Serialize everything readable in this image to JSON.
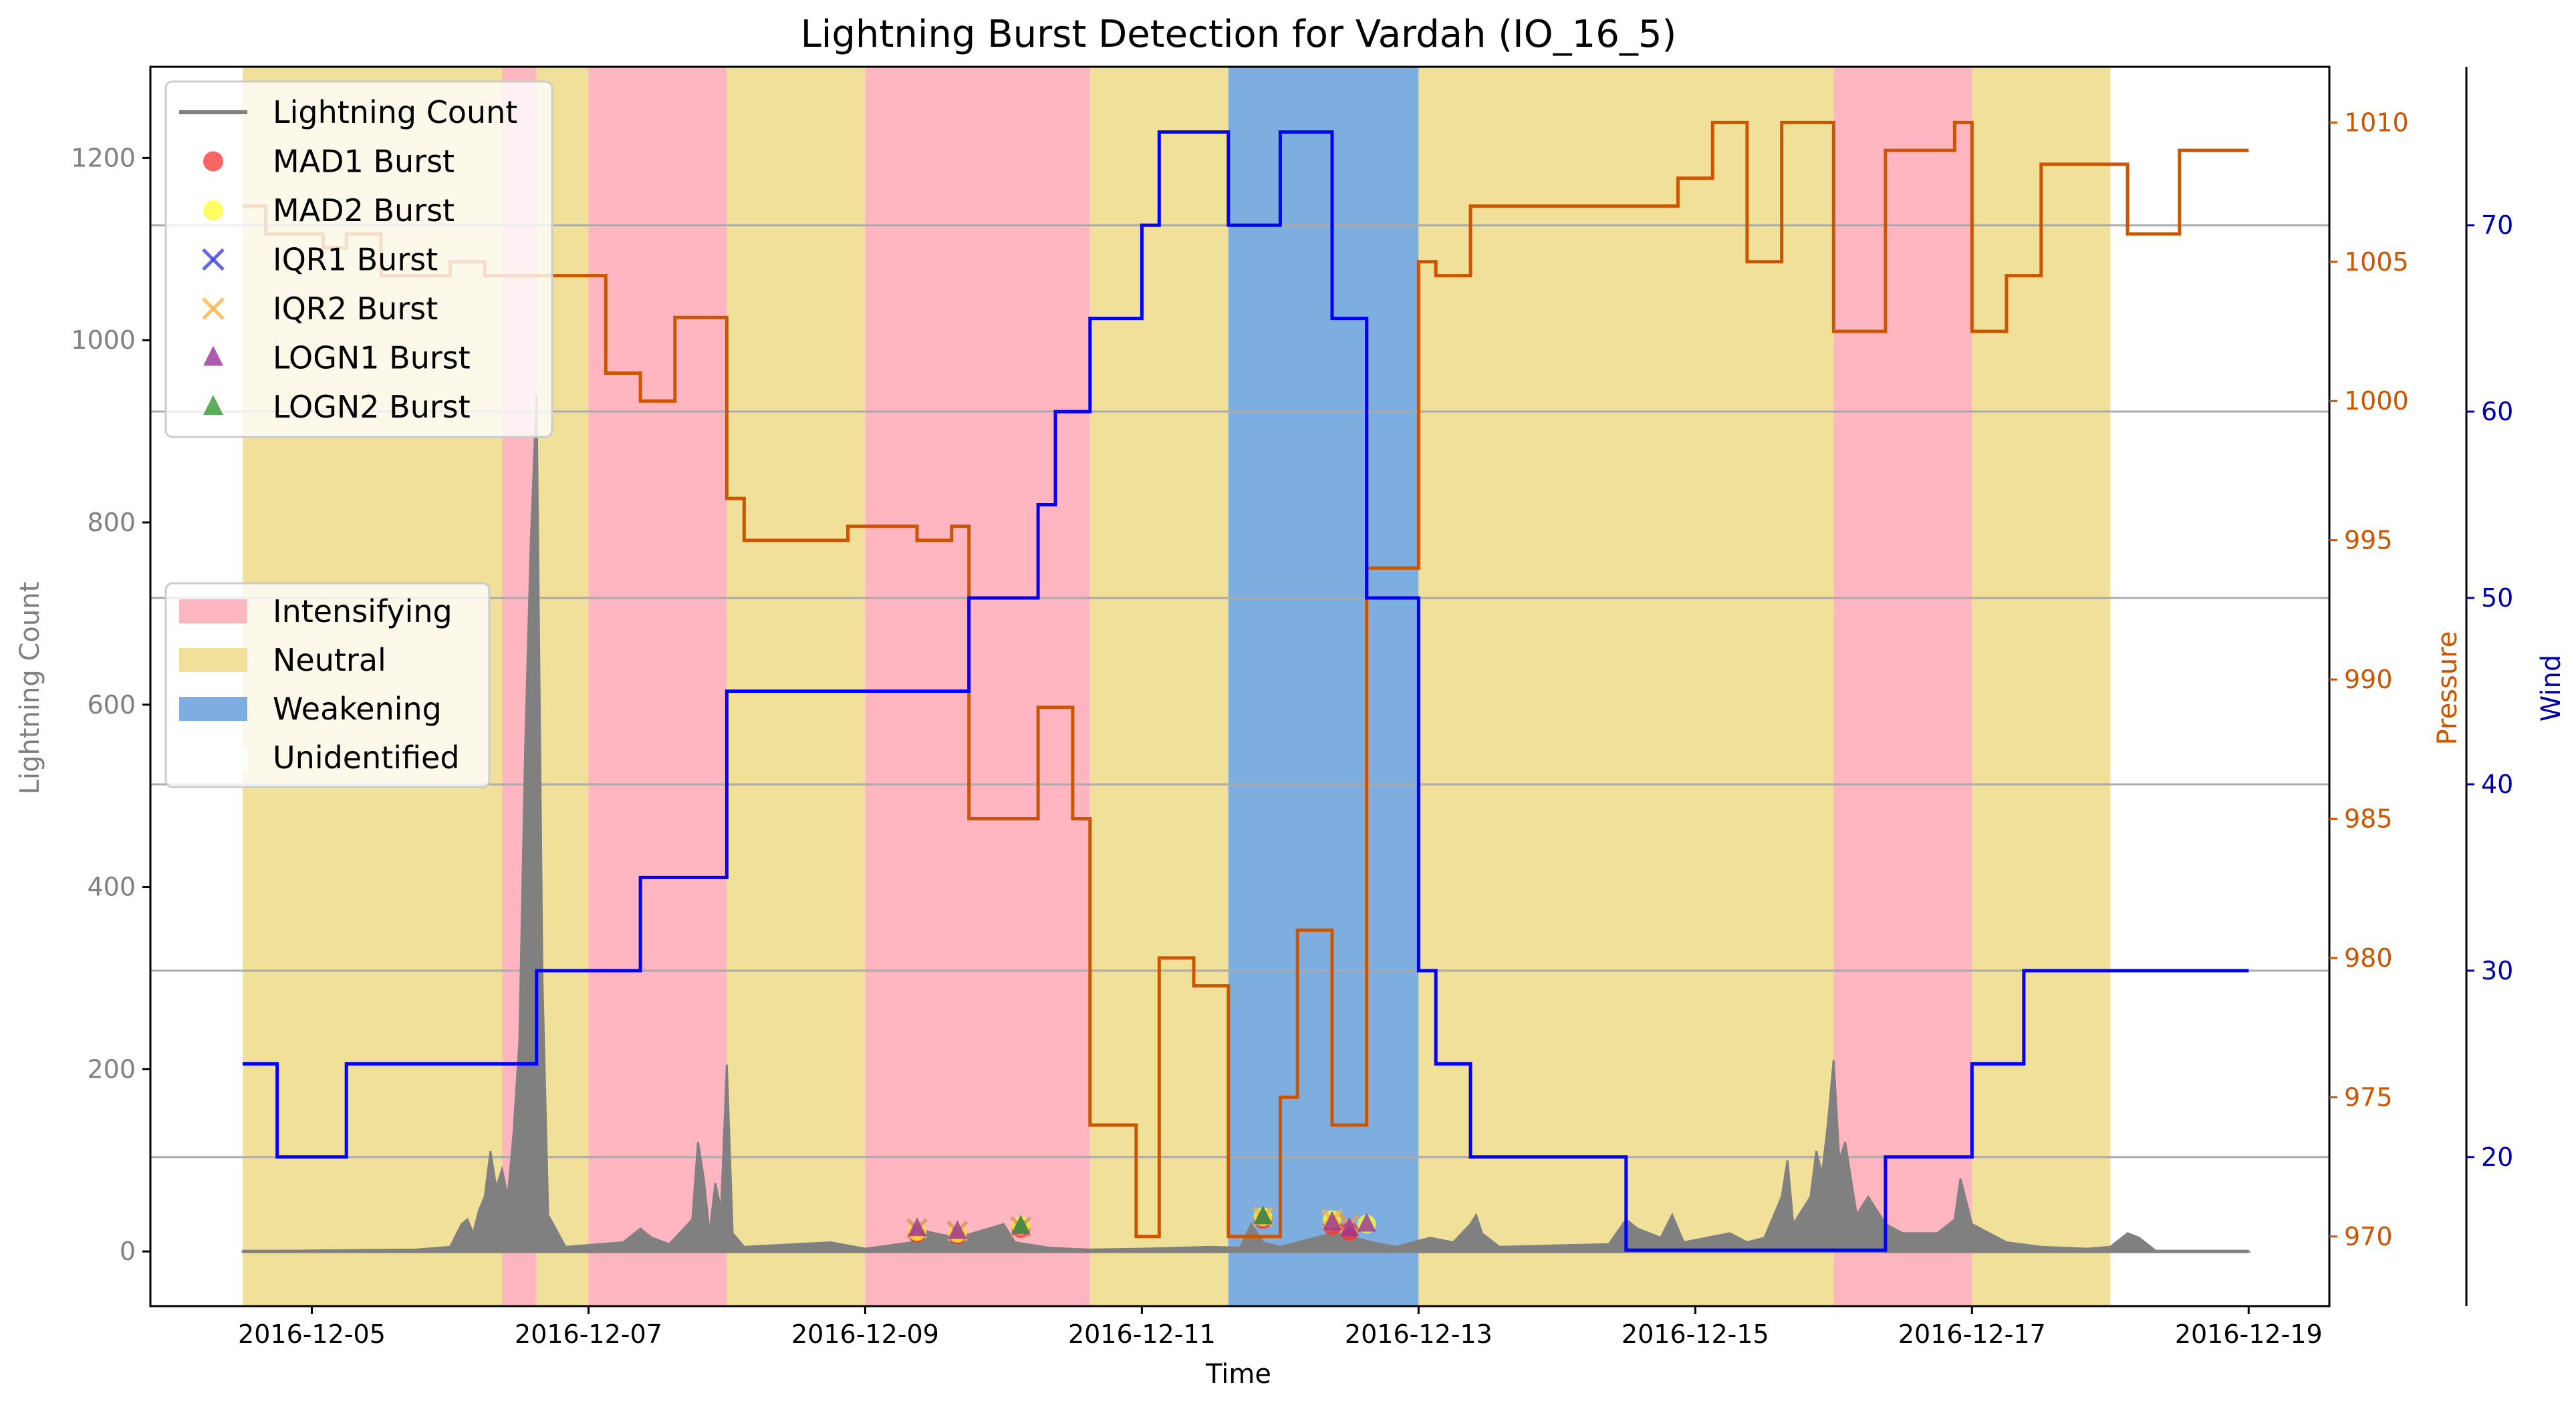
{
  "chart_data": {
    "type": "line",
    "title": "Lightning Burst Detection for Vardah (IO_16_5)",
    "xlabel": "Time",
    "x_ticks": [
      "2016-12-05",
      "2016-12-07",
      "2016-12-09",
      "2016-12-11",
      "2016-12-13",
      "2016-12-15",
      "2016-12-17",
      "2016-12-19"
    ],
    "xlim": [
      "2016-12-03T20:00",
      "2016-12-19T14:00"
    ],
    "axes": {
      "left": {
        "label": "Lightning Count",
        "ylim": [
          -60,
          1300
        ],
        "ticks": [
          0,
          200,
          400,
          600,
          800,
          1000,
          1200
        ],
        "color": "#808080"
      },
      "pressure": {
        "label": "Pressure",
        "ylim": [
          967.5,
          1012
        ],
        "ticks": [
          970,
          975,
          980,
          985,
          990,
          995,
          1000,
          1005,
          1010
        ],
        "color": "#cc5500"
      },
      "wind": {
        "label": "Wind",
        "ylim": [
          12,
          78.5
        ],
        "ticks": [
          20,
          30,
          40,
          50,
          60,
          70
        ],
        "color": "#0000aa"
      }
    },
    "grid": "horizontal lines at wind ticks",
    "colors": {
      "intensifying": "#ffb6c1",
      "neutral": "#f0e09a",
      "weakening": "#7eaee0",
      "lightning": "#808080",
      "pressure": "#cc5500",
      "wind": "#0000ff"
    },
    "phases": [
      {
        "start": "2016-12-04T12:00",
        "end": "2016-12-06T09:00",
        "phase": "Neutral"
      },
      {
        "start": "2016-12-06T09:00",
        "end": "2016-12-06T15:00",
        "phase": "Intensifying"
      },
      {
        "start": "2016-12-06T15:00",
        "end": "2016-12-07T00:00",
        "phase": "Neutral"
      },
      {
        "start": "2016-12-07T00:00",
        "end": "2016-12-08T00:00",
        "phase": "Intensifying"
      },
      {
        "start": "2016-12-08T00:00",
        "end": "2016-12-09T00:00",
        "phase": "Neutral"
      },
      {
        "start": "2016-12-09T00:00",
        "end": "2016-12-10T15:00",
        "phase": "Intensifying"
      },
      {
        "start": "2016-12-10T15:00",
        "end": "2016-12-11T15:00",
        "phase": "Neutral"
      },
      {
        "start": "2016-12-11T15:00",
        "end": "2016-12-13T00:00",
        "phase": "Weakening"
      },
      {
        "start": "2016-12-13T00:00",
        "end": "2016-12-16T00:00",
        "phase": "Neutral"
      },
      {
        "start": "2016-12-16T00:00",
        "end": "2016-12-17T00:00",
        "phase": "Intensifying"
      },
      {
        "start": "2016-12-17T00:00",
        "end": "2016-12-18T00:00",
        "phase": "Neutral"
      }
    ],
    "series": [
      {
        "name": "Lightning Count",
        "axis": "left",
        "points": [
          [
            "2016-12-04T12:00",
            0
          ],
          [
            "2016-12-05T00:00",
            1
          ],
          [
            "2016-12-05T18:00",
            2
          ],
          [
            "2016-12-06T00:00",
            5
          ],
          [
            "2016-12-06T02:00",
            30
          ],
          [
            "2016-12-06T03:00",
            35
          ],
          [
            "2016-12-06T04:00",
            20
          ],
          [
            "2016-12-06T05:00",
            45
          ],
          [
            "2016-12-06T06:00",
            60
          ],
          [
            "2016-12-06T07:00",
            110
          ],
          [
            "2016-12-06T08:00",
            70
          ],
          [
            "2016-12-06T09:00",
            90
          ],
          [
            "2016-12-06T10:00",
            60
          ],
          [
            "2016-12-06T11:00",
            130
          ],
          [
            "2016-12-06T12:00",
            230
          ],
          [
            "2016-12-06T13:00",
            550
          ],
          [
            "2016-12-06T14:00",
            780
          ],
          [
            "2016-12-06T15:00",
            940
          ],
          [
            "2016-12-06T16:00",
            300
          ],
          [
            "2016-12-06T17:00",
            40
          ],
          [
            "2016-12-06T20:00",
            5
          ],
          [
            "2016-12-07T06:00",
            10
          ],
          [
            "2016-12-07T09:00",
            25
          ],
          [
            "2016-12-07T11:00",
            15
          ],
          [
            "2016-12-07T14:00",
            8
          ],
          [
            "2016-12-07T18:00",
            35
          ],
          [
            "2016-12-07T19:00",
            120
          ],
          [
            "2016-12-07T20:00",
            80
          ],
          [
            "2016-12-07T21:00",
            20
          ],
          [
            "2016-12-07T22:00",
            75
          ],
          [
            "2016-12-07T23:00",
            45
          ],
          [
            "2016-12-08T00:00",
            205
          ],
          [
            "2016-12-08T01:00",
            20
          ],
          [
            "2016-12-08T03:00",
            5
          ],
          [
            "2016-12-08T18:00",
            10
          ],
          [
            "2016-12-09T00:00",
            3
          ],
          [
            "2016-12-09T08:00",
            10
          ],
          [
            "2016-12-09T09:00",
            25
          ],
          [
            "2016-12-09T12:00",
            20
          ],
          [
            "2016-12-09T16:00",
            15
          ],
          [
            "2016-12-10T00:00",
            30
          ],
          [
            "2016-12-10T02:00",
            10
          ],
          [
            "2016-12-10T08:00",
            4
          ],
          [
            "2016-12-10T15:00",
            2
          ],
          [
            "2016-12-11T00:00",
            3
          ],
          [
            "2016-12-11T12:00",
            5
          ],
          [
            "2016-12-11T17:00",
            4
          ],
          [
            "2016-12-11T19:00",
            30
          ],
          [
            "2016-12-11T21:00",
            10
          ],
          [
            "2016-12-12T00:00",
            5
          ],
          [
            "2016-12-12T09:00",
            20
          ],
          [
            "2016-12-12T10:00",
            35
          ],
          [
            "2016-12-12T11:00",
            25
          ],
          [
            "2016-12-12T12:00",
            30
          ],
          [
            "2016-12-12T13:00",
            15
          ],
          [
            "2016-12-12T16:00",
            10
          ],
          [
            "2016-12-12T20:00",
            5
          ],
          [
            "2016-12-13T02:00",
            15
          ],
          [
            "2016-12-13T06:00",
            10
          ],
          [
            "2016-12-13T09:00",
            30
          ],
          [
            "2016-12-13T10:00",
            40
          ],
          [
            "2016-12-13T11:00",
            20
          ],
          [
            "2016-12-13T14:00",
            5
          ],
          [
            "2016-12-14T09:00",
            8
          ],
          [
            "2016-12-14T12:00",
            35
          ],
          [
            "2016-12-14T14:00",
            25
          ],
          [
            "2016-12-14T18:00",
            15
          ],
          [
            "2016-12-14T20:00",
            40
          ],
          [
            "2016-12-14T22:00",
            10
          ],
          [
            "2016-12-15T06:00",
            20
          ],
          [
            "2016-12-15T09:00",
            10
          ],
          [
            "2016-12-15T12:00",
            15
          ],
          [
            "2016-12-15T15:00",
            60
          ],
          [
            "2016-12-15T16:00",
            100
          ],
          [
            "2016-12-15T17:00",
            30
          ],
          [
            "2016-12-15T20:00",
            60
          ],
          [
            "2016-12-15T21:00",
            110
          ],
          [
            "2016-12-15T22:00",
            85
          ],
          [
            "2016-12-15T23:00",
            140
          ],
          [
            "2016-12-16T00:00",
            210
          ],
          [
            "2016-12-16T01:00",
            100
          ],
          [
            "2016-12-16T02:00",
            120
          ],
          [
            "2016-12-16T04:00",
            40
          ],
          [
            "2016-12-16T06:00",
            60
          ],
          [
            "2016-12-16T09:00",
            30
          ],
          [
            "2016-12-16T12:00",
            20
          ],
          [
            "2016-12-16T18:00",
            20
          ],
          [
            "2016-12-16T21:00",
            35
          ],
          [
            "2016-12-16T22:00",
            80
          ],
          [
            "2016-12-17T00:00",
            30
          ],
          [
            "2016-12-17T03:00",
            20
          ],
          [
            "2016-12-17T06:00",
            10
          ],
          [
            "2016-12-17T12:00",
            5
          ],
          [
            "2016-12-17T20:00",
            3
          ],
          [
            "2016-12-18T00:00",
            5
          ],
          [
            "2016-12-18T03:00",
            20
          ],
          [
            "2016-12-18T05:00",
            15
          ],
          [
            "2016-12-18T08:00",
            0
          ],
          [
            "2016-12-19T00:00",
            0
          ]
        ]
      },
      {
        "name": "Pressure",
        "axis": "pressure",
        "points": [
          [
            "2016-12-04T12:00",
            1007
          ],
          [
            "2016-12-04T16:00",
            1006
          ],
          [
            "2016-12-05T02:00",
            1005.5
          ],
          [
            "2016-12-05T06:00",
            1006
          ],
          [
            "2016-12-05T12:00",
            1004.5
          ],
          [
            "2016-12-06T00:00",
            1005
          ],
          [
            "2016-12-06T06:00",
            1004.5
          ],
          [
            "2016-12-07T03:00",
            1001
          ],
          [
            "2016-12-07T09:00",
            1000
          ],
          [
            "2016-12-07T15:00",
            1003
          ],
          [
            "2016-12-07T21:00",
            1003
          ],
          [
            "2016-12-08T00:00",
            996.5
          ],
          [
            "2016-12-08T03:00",
            995
          ],
          [
            "2016-12-08T21:00",
            995.5
          ],
          [
            "2016-12-09T03:00",
            995.5
          ],
          [
            "2016-12-09T09:00",
            995
          ],
          [
            "2016-12-09T15:00",
            995.5
          ],
          [
            "2016-12-09T18:00",
            985
          ],
          [
            "2016-12-10T06:00",
            989
          ],
          [
            "2016-12-10T12:00",
            985
          ],
          [
            "2016-12-10T15:00",
            974
          ],
          [
            "2016-12-10T23:00",
            970
          ],
          [
            "2016-12-11T03:00",
            980
          ],
          [
            "2016-12-11T09:00",
            979
          ],
          [
            "2016-12-11T15:00",
            970
          ],
          [
            "2016-12-12T00:00",
            975
          ],
          [
            "2016-12-12T03:00",
            981
          ],
          [
            "2016-12-12T09:00",
            974
          ],
          [
            "2016-12-12T15:00",
            994
          ],
          [
            "2016-12-13T00:00",
            1005
          ],
          [
            "2016-12-13T03:00",
            1004.5
          ],
          [
            "2016-12-13T09:00",
            1007
          ],
          [
            "2016-12-14T21:00",
            1008
          ],
          [
            "2016-12-15T03:00",
            1010
          ],
          [
            "2016-12-15T09:00",
            1005
          ],
          [
            "2016-12-15T15:00",
            1010
          ],
          [
            "2016-12-16T00:00",
            1002.5
          ],
          [
            "2016-12-16T09:00",
            1009
          ],
          [
            "2016-12-16T21:00",
            1010
          ],
          [
            "2016-12-17T00:00",
            1002.5
          ],
          [
            "2016-12-17T06:00",
            1004.5
          ],
          [
            "2016-12-17T12:00",
            1008.5
          ],
          [
            "2016-12-18T03:00",
            1006
          ],
          [
            "2016-12-18T12:00",
            1009
          ],
          [
            "2016-12-19T00:00",
            1009
          ]
        ]
      },
      {
        "name": "Wind",
        "axis": "wind",
        "points": [
          [
            "2016-12-04T12:00",
            25
          ],
          [
            "2016-12-04T18:00",
            20
          ],
          [
            "2016-12-05T06:00",
            25
          ],
          [
            "2016-12-06T15:00",
            30
          ],
          [
            "2016-12-07T09:00",
            35
          ],
          [
            "2016-12-08T00:00",
            45
          ],
          [
            "2016-12-09T18:00",
            50
          ],
          [
            "2016-12-10T06:00",
            55
          ],
          [
            "2016-12-10T09:00",
            60
          ],
          [
            "2016-12-10T15:00",
            65
          ],
          [
            "2016-12-11T00:00",
            70
          ],
          [
            "2016-12-11T03:00",
            75
          ],
          [
            "2016-12-11T15:00",
            70
          ],
          [
            "2016-12-12T00:00",
            75
          ],
          [
            "2016-12-12T09:00",
            65
          ],
          [
            "2016-12-12T15:00",
            50
          ],
          [
            "2016-12-13T00:00",
            30
          ],
          [
            "2016-12-13T03:00",
            25
          ],
          [
            "2016-12-13T09:00",
            20
          ],
          [
            "2016-12-14T12:00",
            15
          ],
          [
            "2016-12-16T09:00",
            20
          ],
          [
            "2016-12-17T00:00",
            25
          ],
          [
            "2016-12-17T09:00",
            30
          ],
          [
            "2016-12-19T00:00",
            30
          ]
        ]
      }
    ],
    "bursts": {
      "MAD1 Burst": [
        [
          "2016-12-09T09:00",
          20
        ],
        [
          "2016-12-09T16:00",
          18
        ],
        [
          "2016-12-10T03:00",
          25
        ],
        [
          "2016-12-11T21:00",
          35
        ],
        [
          "2016-12-12T09:00",
          28
        ],
        [
          "2016-12-12T12:00",
          22
        ]
      ],
      "MAD2 Burst": [
        [
          "2016-12-09T09:00",
          22
        ],
        [
          "2016-12-09T16:00",
          20
        ],
        [
          "2016-12-10T03:00",
          28
        ],
        [
          "2016-12-11T21:00",
          38
        ],
        [
          "2016-12-12T09:00",
          35
        ],
        [
          "2016-12-12T15:00",
          30
        ]
      ],
      "IQR1 Burst": [
        [
          "2016-12-09T09:00",
          25
        ],
        [
          "2016-12-09T16:00",
          22
        ],
        [
          "2016-12-10T03:00",
          27
        ],
        [
          "2016-12-12T12:00",
          30
        ]
      ],
      "IQR2 Burst": [
        [
          "2016-12-09T09:00",
          25
        ],
        [
          "2016-12-09T16:00",
          22
        ],
        [
          "2016-12-10T03:00",
          27
        ],
        [
          "2016-12-11T21:00",
          38
        ],
        [
          "2016-12-12T09:00",
          35
        ],
        [
          "2016-12-12T12:00",
          30
        ]
      ],
      "LOGN1 Burst": [
        [
          "2016-12-09T09:00",
          25
        ],
        [
          "2016-12-09T16:00",
          22
        ],
        [
          "2016-12-10T03:00",
          27
        ],
        [
          "2016-12-11T21:00",
          38
        ],
        [
          "2016-12-12T09:00",
          32
        ],
        [
          "2016-12-12T12:00",
          25
        ],
        [
          "2016-12-12T15:00",
          30
        ]
      ],
      "LOGN2 Burst": [
        [
          "2016-12-10T03:00",
          28
        ],
        [
          "2016-12-11T21:00",
          38
        ]
      ]
    },
    "legend_top": {
      "placement": "upper-left",
      "items": [
        {
          "label": "Lightning Count",
          "marker": "line",
          "color": "#808080"
        },
        {
          "label": "MAD1 Burst",
          "marker": "circle",
          "color": "#ff3030"
        },
        {
          "label": "MAD2 Burst",
          "marker": "circle",
          "color": "#ffff30"
        },
        {
          "label": "IQR1 Burst",
          "marker": "x",
          "color": "#4040dd"
        },
        {
          "label": "IQR2 Burst",
          "marker": "x",
          "color": "#ffb040"
        },
        {
          "label": "LOGN1 Burst",
          "marker": "triangle",
          "color": "#993399"
        },
        {
          "label": "LOGN2 Burst",
          "marker": "triangle",
          "color": "#339933"
        }
      ]
    },
    "legend_phase": {
      "placement": "center-left",
      "items": [
        {
          "label": "Intensifying",
          "color": "#ffb6c1"
        },
        {
          "label": "Neutral",
          "color": "#f0e09a"
        },
        {
          "label": "Weakening",
          "color": "#7eaee0"
        },
        {
          "label": "Unidentified",
          "color": "#ffffff"
        }
      ]
    }
  }
}
